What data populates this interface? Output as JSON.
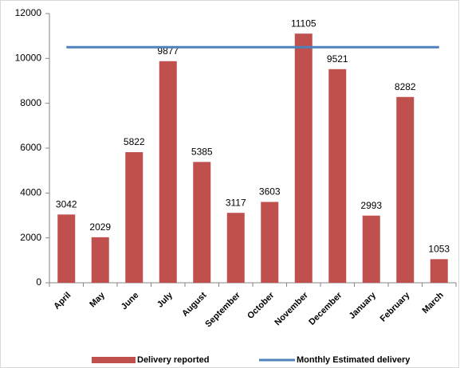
{
  "chart_data": {
    "type": "bar",
    "categories": [
      "April",
      "May",
      "June",
      "July",
      "August",
      "September",
      "October",
      "November",
      "December",
      "January",
      "February",
      "March"
    ],
    "series": [
      {
        "name": "Delivery reported",
        "type": "bar",
        "color": "#c0504d",
        "values": [
          3042,
          2029,
          5822,
          9877,
          5385,
          3117,
          3603,
          11105,
          9521,
          2993,
          8282,
          1053
        ]
      },
      {
        "name": "Monthly Estimated delivery",
        "type": "line",
        "color": "#4f81bd",
        "values": [
          10500,
          10500,
          10500,
          10500,
          10500,
          10500,
          10500,
          10500,
          10500,
          10500,
          10500,
          10500
        ]
      }
    ],
    "ylim": [
      0,
      12000
    ],
    "yticks": [
      0,
      2000,
      4000,
      6000,
      8000,
      10000,
      12000
    ],
    "legend": "bottom"
  }
}
